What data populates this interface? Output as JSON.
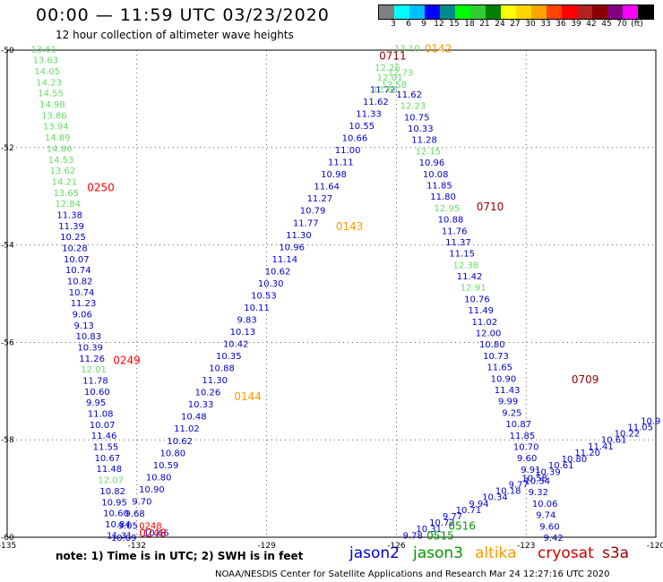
{
  "title": "00:00 — 11:59 UTC 03/23/2020",
  "subtitle": "12 hour collection of altimeter wave heights",
  "colorbar": {
    "colors": [
      "#808080",
      "#00ffff",
      "#00bfff",
      "#0000ff",
      "#008b8b",
      "#00ff00",
      "#32cd32",
      "#008000",
      "#ffff00",
      "#ffd700",
      "#ffa500",
      "#ff4500",
      "#ff0000",
      "#b22222",
      "#8b0000",
      "#800080",
      "#ff00ff",
      "#000000"
    ],
    "labels": [
      "3",
      "6",
      "9",
      "12",
      "15",
      "18",
      "21",
      "24",
      "27",
      "30",
      "33",
      "36",
      "39",
      "42",
      "45",
      "70",
      "(ft)"
    ]
  },
  "axes": {
    "x_labels": [
      "-135",
      "-132",
      "-129",
      "-126",
      "-123",
      "-120"
    ],
    "y_labels": [
      "-50",
      "-52",
      "-54",
      "-56",
      "-58",
      "-60"
    ]
  },
  "note": "note: 1) Time is in UTC; 2) SWH is in feet",
  "legend": [
    {
      "name": "jason2",
      "color": "#0000cc"
    },
    {
      "name": "jason3",
      "color": "#009900"
    },
    {
      "name": "altika",
      "color": "#ff9900"
    },
    {
      "name": "cryosat",
      "color": "#cc0000"
    },
    {
      "name": "s3a",
      "color": "#990000"
    }
  ],
  "credit": "NOAA/NESDIS Center for Satellite Applications and Research     Mar 24 12:27:16 UTC 2020",
  "time_labels": [
    {
      "text": "0250",
      "color": "#ff0000",
      "lon": -133.15,
      "lat": -52.8
    },
    {
      "text": "0249",
      "color": "#ff0000",
      "lon": -132.55,
      "lat": -56.35
    },
    {
      "text": "0248",
      "color": "#ff0000",
      "lon": -131.95,
      "lat": -59.9
    },
    {
      "text": "0143",
      "color": "#ff9900",
      "lon": -127.4,
      "lat": -53.6
    },
    {
      "text": "0144",
      "color": "#ff9900",
      "lon": -129.75,
      "lat": -57.1
    },
    {
      "text": "0142",
      "color": "#ff9900",
      "lon": -125.35,
      "lat": -49.95
    },
    {
      "text": "0711",
      "color": "#990000",
      "lon": -126.4,
      "lat": -50.1
    },
    {
      "text": "0710",
      "color": "#990000",
      "lon": -124.15,
      "lat": -53.2
    },
    {
      "text": "0709",
      "color": "#990000",
      "lon": -121.95,
      "lat": -56.75
    },
    {
      "text": "0516",
      "color": "#009900",
      "lon": -124.8,
      "lat": -59.75
    },
    {
      "text": "0515",
      "color": "#009900",
      "lon": -125.3,
      "lat": -59.95
    }
  ],
  "tracks": [
    {
      "name": "cryosat-0250",
      "start": [
        -134.45,
        -49.97
      ],
      "end": [
        -132.7,
        -59.95
      ],
      "values": [
        [
          "13.61",
          "j3"
        ],
        [
          "13.63",
          "j3"
        ],
        [
          "14.05",
          "j3"
        ],
        [
          "14.23",
          "j3"
        ],
        [
          "14.55",
          "j3"
        ],
        [
          "14.98",
          "j3"
        ],
        [
          "13.86",
          "j3"
        ],
        [
          "13.94",
          "j3"
        ],
        [
          "14.89",
          "j3"
        ],
        [
          "14.86",
          "j3"
        ],
        [
          "14.53",
          "j3"
        ],
        [
          "13.62",
          "j3"
        ],
        [
          "14.21",
          "j3"
        ],
        [
          "13.65",
          "j3"
        ],
        [
          "12.84",
          "j3"
        ],
        [
          "11.38",
          "j2"
        ],
        [
          "11.39",
          "j2"
        ],
        [
          "10.25",
          "j2"
        ],
        [
          "10.28",
          "j2"
        ],
        [
          "10.07",
          "j2"
        ],
        [
          "10.74",
          "j2"
        ],
        [
          "10.82",
          "j2"
        ],
        [
          "10.74",
          "j2"
        ],
        [
          "11.23",
          "j2"
        ],
        [
          "9.06",
          "j2"
        ],
        [
          "9.13",
          "j2"
        ],
        [
          "10.83",
          "j2"
        ],
        [
          "10.39",
          "j2"
        ],
        [
          "11.26",
          "j2"
        ],
        [
          "12.01",
          "j3"
        ],
        [
          "11.78",
          "j2"
        ],
        [
          "10.60",
          "j2"
        ],
        [
          "9.95",
          "j2"
        ],
        [
          "11.08",
          "j2"
        ],
        [
          "10.07",
          "j2"
        ],
        [
          "11.46",
          "j2"
        ],
        [
          "11.55",
          "j2"
        ],
        [
          "10.67",
          "j2"
        ],
        [
          "11.48",
          "j2"
        ],
        [
          "12.07",
          "j3"
        ],
        [
          "10.82",
          "j2"
        ],
        [
          "10.95",
          "j2"
        ],
        [
          "10.60",
          "j2"
        ],
        [
          "10.84",
          "j2"
        ],
        [
          "11.31",
          "j2"
        ]
      ]
    },
    {
      "name": "altika-0144",
      "start": [
        -132.6,
        -60.0
      ],
      "end": [
        -126.45,
        -50.55
      ],
      "values": [
        [
          "10.09",
          "j2"
        ],
        [
          "9.05",
          "j2"
        ],
        [
          "9.68",
          "j2"
        ],
        [
          "9.70",
          "j2"
        ],
        [
          "10.90",
          "j2"
        ],
        [
          "10.80",
          "j2"
        ],
        [
          "10.59",
          "j2"
        ],
        [
          "10.80",
          "j2"
        ],
        [
          "10.62",
          "j2"
        ],
        [
          "11.02",
          "j2"
        ],
        [
          "10.48",
          "j2"
        ],
        [
          "10.33",
          "j2"
        ],
        [
          "10.26",
          "j2"
        ],
        [
          "11.30",
          "j2"
        ],
        [
          "10.88",
          "j2"
        ],
        [
          "10.35",
          "j2"
        ],
        [
          "10.42",
          "j2"
        ],
        [
          "10.13",
          "j2"
        ],
        [
          "9.83",
          "j2"
        ],
        [
          "10.11",
          "j2"
        ],
        [
          "10.53",
          "j2"
        ],
        [
          "10.30",
          "j2"
        ],
        [
          "10.62",
          "j2"
        ],
        [
          "11.14",
          "j2"
        ],
        [
          "10.96",
          "j2"
        ],
        [
          "11.30",
          "j2"
        ],
        [
          "11.77",
          "j2"
        ],
        [
          "10.79",
          "j2"
        ],
        [
          "11.27",
          "j2"
        ],
        [
          "11.64",
          "j2"
        ],
        [
          "10.98",
          "j2"
        ],
        [
          "11.11",
          "j2"
        ],
        [
          "11.00",
          "j2"
        ],
        [
          "10.66",
          "j2"
        ],
        [
          "10.55",
          "j2"
        ],
        [
          "11.33",
          "j2"
        ],
        [
          "11.62",
          "j2"
        ],
        [
          "11.72",
          "j2"
        ],
        [
          "12.01",
          "j3"
        ]
      ]
    },
    {
      "name": "s3a-0711",
      "start": [
        -126.0,
        -50.9
      ],
      "end": [
        -122.6,
        -60.0
      ],
      "values": [
        [
          "11.62",
          "j2"
        ],
        [
          "12.23",
          "j3"
        ],
        [
          "10.75",
          "j2"
        ],
        [
          "10.33",
          "j2"
        ],
        [
          "11.28",
          "j2"
        ],
        [
          "12.15",
          "j3"
        ],
        [
          "10.96",
          "j2"
        ],
        [
          "10.08",
          "j2"
        ],
        [
          "11.85",
          "j2"
        ],
        [
          "11.80",
          "j2"
        ],
        [
          "12.95",
          "j3"
        ],
        [
          "10.88",
          "j2"
        ],
        [
          "11.76",
          "j2"
        ],
        [
          "11.37",
          "j2"
        ],
        [
          "11.15",
          "j2"
        ],
        [
          "12.38",
          "j3"
        ],
        [
          "11.42",
          "j2"
        ],
        [
          "12.91",
          "j3"
        ],
        [
          "10.76",
          "j2"
        ],
        [
          "11.49",
          "j2"
        ],
        [
          "11.02",
          "j2"
        ],
        [
          "12.00",
          "j2"
        ],
        [
          "10.80",
          "j2"
        ],
        [
          "10.73",
          "j2"
        ],
        [
          "11.65",
          "j2"
        ],
        [
          "10.90",
          "j2"
        ],
        [
          "11.43",
          "j2"
        ],
        [
          "9.99",
          "j2"
        ],
        [
          "9.25",
          "j2"
        ],
        [
          "10.87",
          "j2"
        ],
        [
          "11.85",
          "j2"
        ],
        [
          "10.70",
          "j2"
        ],
        [
          "9.60",
          "j2"
        ],
        [
          "9.91",
          "j2"
        ],
        [
          "10.54",
          "j2"
        ],
        [
          "9.32",
          "j2"
        ],
        [
          "10.06",
          "j2"
        ],
        [
          "9.74",
          "j2"
        ],
        [
          "9.60",
          "j2"
        ],
        [
          "9.42",
          "j2"
        ]
      ]
    },
    {
      "name": "jason-0516",
      "start": [
        -125.85,
        -59.95
      ],
      "end": [
        -120.35,
        -57.6
      ],
      "values": [
        [
          "9.78",
          "j2"
        ],
        [
          "10.31",
          "j2"
        ],
        [
          "10.72",
          "j2"
        ],
        [
          "9.77",
          "j2"
        ],
        [
          "10.71",
          "j2"
        ],
        [
          "9.94",
          "j2"
        ],
        [
          "10.34",
          "j2"
        ],
        [
          "10.18",
          "j2"
        ],
        [
          "9.77",
          "j2"
        ],
        [
          "10.58",
          "j2"
        ],
        [
          "10.39",
          "j2"
        ],
        [
          "10.61",
          "j2"
        ],
        [
          "10.80",
          "j2"
        ],
        [
          "11.20",
          "j2"
        ],
        [
          "11.41",
          "j2"
        ],
        [
          "10.61",
          "j2"
        ],
        [
          "10.22",
          "j2"
        ],
        [
          "11.05",
          "j2"
        ],
        [
          "10.9",
          "j2"
        ]
      ]
    }
  ],
  "top_labels": [
    {
      "text": "13.10",
      "color": "#66dd66",
      "lon": -126.05,
      "lat": -49.95
    },
    {
      "text": "12.26",
      "color": "#66dd66",
      "lon": -126.5,
      "lat": -50.35
    },
    {
      "text": "12.73",
      "color": "#66dd66",
      "lon": -126.2,
      "lat": -50.45
    },
    {
      "text": "12.58",
      "color": "#66dd66",
      "lon": -126.35,
      "lat": -50.7
    },
    {
      "text": "12.62",
      "color": "#66dd66",
      "lon": -126.55,
      "lat": -50.8
    },
    {
      "text": "10.66",
      "color": "#0000cc",
      "lon": -131.85,
      "lat": -59.9
    },
    {
      "text": "0248",
      "color": "#ff0000",
      "lon": -131.95,
      "lat": -59.75
    }
  ]
}
